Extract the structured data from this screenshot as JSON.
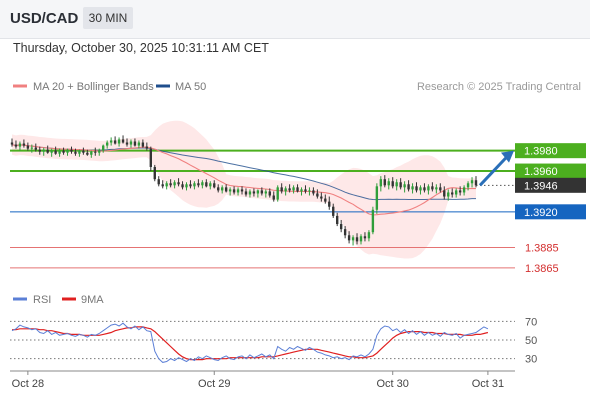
{
  "header": {
    "symbol": "USD/CAD",
    "timeframe": "30 MIN",
    "datetime": "Thursday, October 30, 2025 10:31:11 AM CET"
  },
  "credit": "Research © 2025 Trading Central",
  "colors": {
    "up_candle": "#2f9e3a",
    "down_candle": "#333333",
    "ma20": "#f08080",
    "bollinger_fill": "#fde0e0",
    "ma50": "#1f4e8c",
    "resistance": "#4caf1f",
    "pivot": "#1565c0",
    "support": "#e57373",
    "last_price_bg": "#333333",
    "rsi": "#5b7fd6",
    "rsi_ma": "#e02020",
    "arrow": "#2a6fb8"
  },
  "chart_data": [
    {
      "type": "candlestick",
      "title": "USD/CAD 30 MIN",
      "legend": [
        {
          "name": "MA 20 + Bollinger Bands",
          "color": "#f08080"
        },
        {
          "name": "MA 50",
          "color": "#1f4e8c"
        }
      ],
      "ylim": [
        1.3858,
        1.4015
      ],
      "levels": [
        {
          "value": 1.398,
          "label": "1.3980",
          "kind": "resistance"
        },
        {
          "value": 1.396,
          "label": "1.3960",
          "kind": "resistance"
        },
        {
          "value": 1.3946,
          "label": "1.3946",
          "kind": "last"
        },
        {
          "value": 1.392,
          "label": "1.3920",
          "kind": "pivot"
        },
        {
          "value": 1.3885,
          "label": "1.3885",
          "kind": "support"
        },
        {
          "value": 1.3865,
          "label": "1.3865",
          "kind": "support"
        }
      ],
      "last_price": 1.3946,
      "forecast_target": 1.398,
      "x_ticks": [
        {
          "label": "Oct 28",
          "index": 4
        },
        {
          "label": "Oct 29",
          "index": 51
        },
        {
          "label": "Oct 30",
          "index": 96
        },
        {
          "label": "Oct 31",
          "index": 120
        }
      ],
      "ohlc": [
        [
          1.3988,
          1.3992,
          1.3984,
          1.3986
        ],
        [
          1.3986,
          1.399,
          1.3982,
          1.3984
        ],
        [
          1.3984,
          1.3989,
          1.398,
          1.3987
        ],
        [
          1.3987,
          1.3991,
          1.3983,
          1.3985
        ],
        [
          1.3985,
          1.3988,
          1.398,
          1.3982
        ],
        [
          1.3982,
          1.3986,
          1.3978,
          1.3983
        ],
        [
          1.3983,
          1.3987,
          1.3979,
          1.3981
        ],
        [
          1.3981,
          1.3984,
          1.3976,
          1.3979
        ],
        [
          1.3979,
          1.3983,
          1.3975,
          1.3981
        ],
        [
          1.3981,
          1.3985,
          1.3977,
          1.3978
        ],
        [
          1.3978,
          1.3982,
          1.3974,
          1.398
        ],
        [
          1.398,
          1.3984,
          1.3976,
          1.3977
        ],
        [
          1.3977,
          1.3982,
          1.3974,
          1.398
        ],
        [
          1.398,
          1.3983,
          1.3976,
          1.3978
        ],
        [
          1.3978,
          1.3982,
          1.3975,
          1.3981
        ],
        [
          1.3981,
          1.3984,
          1.3977,
          1.3979
        ],
        [
          1.3979,
          1.3982,
          1.3975,
          1.3977
        ],
        [
          1.3977,
          1.3981,
          1.3974,
          1.398
        ],
        [
          1.398,
          1.3983,
          1.3976,
          1.3978
        ],
        [
          1.3978,
          1.3981,
          1.3975,
          1.3976
        ],
        [
          1.3976,
          1.398,
          1.3973,
          1.3979
        ],
        [
          1.3979,
          1.3983,
          1.3975,
          1.3978
        ],
        [
          1.3978,
          1.3982,
          1.3975,
          1.398
        ],
        [
          1.398,
          1.3986,
          1.3978,
          1.3985
        ],
        [
          1.3985,
          1.399,
          1.3982,
          1.3988
        ],
        [
          1.3988,
          1.3993,
          1.3985,
          1.399
        ],
        [
          1.399,
          1.3994,
          1.3986,
          1.3987
        ],
        [
          1.3987,
          1.3993,
          1.3984,
          1.3991
        ],
        [
          1.3991,
          1.3995,
          1.3987,
          1.3988
        ],
        [
          1.3988,
          1.3992,
          1.3984,
          1.3986
        ],
        [
          1.3986,
          1.3991,
          1.3983,
          1.3989
        ],
        [
          1.3989,
          1.3992,
          1.3984,
          1.3985
        ],
        [
          1.3985,
          1.399,
          1.3982,
          1.3988
        ],
        [
          1.3988,
          1.3991,
          1.3983,
          1.3984
        ],
        [
          1.3984,
          1.3988,
          1.398,
          1.3982
        ],
        [
          1.3982,
          1.3984,
          1.396,
          1.3964
        ],
        [
          1.3964,
          1.3966,
          1.395,
          1.3952
        ],
        [
          1.3952,
          1.3955,
          1.3945,
          1.3947
        ],
        [
          1.3947,
          1.3951,
          1.3943,
          1.3945
        ],
        [
          1.3945,
          1.395,
          1.3942,
          1.3948
        ],
        [
          1.3948,
          1.3952,
          1.3944,
          1.3946
        ],
        [
          1.3946,
          1.3951,
          1.3943,
          1.3949
        ],
        [
          1.3949,
          1.3953,
          1.3945,
          1.3947
        ],
        [
          1.3947,
          1.395,
          1.3942,
          1.3944
        ],
        [
          1.3944,
          1.3949,
          1.3941,
          1.3947
        ],
        [
          1.3947,
          1.3951,
          1.3943,
          1.3945
        ],
        [
          1.3945,
          1.395,
          1.3942,
          1.3948
        ],
        [
          1.3948,
          1.3952,
          1.3944,
          1.3946
        ],
        [
          1.3946,
          1.3951,
          1.3943,
          1.3949
        ],
        [
          1.3949,
          1.3952,
          1.3944,
          1.3945
        ],
        [
          1.3945,
          1.395,
          1.3942,
          1.3948
        ],
        [
          1.3948,
          1.3951,
          1.3943,
          1.3944
        ],
        [
          1.3944,
          1.3947,
          1.3939,
          1.3941
        ],
        [
          1.3941,
          1.3946,
          1.3938,
          1.3944
        ],
        [
          1.3944,
          1.3947,
          1.3939,
          1.394
        ],
        [
          1.394,
          1.3944,
          1.3936,
          1.3942
        ],
        [
          1.3942,
          1.3945,
          1.3937,
          1.3939
        ],
        [
          1.3939,
          1.3944,
          1.3936,
          1.3942
        ],
        [
          1.3942,
          1.3945,
          1.3937,
          1.394
        ],
        [
          1.394,
          1.3943,
          1.3935,
          1.3937
        ],
        [
          1.3937,
          1.3942,
          1.3934,
          1.394
        ],
        [
          1.394,
          1.3943,
          1.3935,
          1.3938
        ],
        [
          1.3938,
          1.3942,
          1.3934,
          1.3941
        ],
        [
          1.3941,
          1.3944,
          1.3936,
          1.3938
        ],
        [
          1.3938,
          1.3942,
          1.3934,
          1.394
        ],
        [
          1.394,
          1.3943,
          1.3934,
          1.3936
        ],
        [
          1.3936,
          1.394,
          1.393,
          1.3932
        ],
        [
          1.3932,
          1.3946,
          1.393,
          1.3944
        ],
        [
          1.3944,
          1.3948,
          1.3938,
          1.394
        ],
        [
          1.394,
          1.3945,
          1.3936,
          1.3943
        ],
        [
          1.3943,
          1.3947,
          1.3939,
          1.3941
        ],
        [
          1.3941,
          1.3946,
          1.3938,
          1.3944
        ],
        [
          1.3944,
          1.3947,
          1.3939,
          1.394
        ],
        [
          1.394,
          1.3944,
          1.3936,
          1.3942
        ],
        [
          1.3942,
          1.3946,
          1.3938,
          1.394
        ],
        [
          1.394,
          1.3944,
          1.3936,
          1.3941
        ],
        [
          1.3941,
          1.3944,
          1.3936,
          1.3938
        ],
        [
          1.3938,
          1.3942,
          1.3933,
          1.3935
        ],
        [
          1.3935,
          1.3939,
          1.393,
          1.3933
        ],
        [
          1.3933,
          1.3937,
          1.3928,
          1.393
        ],
        [
          1.393,
          1.3935,
          1.3922,
          1.3925
        ],
        [
          1.3925,
          1.3928,
          1.3914,
          1.3916
        ],
        [
          1.3916,
          1.3919,
          1.3906,
          1.3908
        ],
        [
          1.3908,
          1.3912,
          1.39,
          1.3903
        ],
        [
          1.3903,
          1.3906,
          1.3894,
          1.3897
        ],
        [
          1.3897,
          1.3901,
          1.3889,
          1.3892
        ],
        [
          1.3892,
          1.3897,
          1.3887,
          1.3895
        ],
        [
          1.3895,
          1.3899,
          1.3888,
          1.3891
        ],
        [
          1.3891,
          1.3898,
          1.3888,
          1.3896
        ],
        [
          1.3896,
          1.39,
          1.3891,
          1.3894
        ],
        [
          1.3894,
          1.3902,
          1.3891,
          1.39
        ],
        [
          1.39,
          1.3925,
          1.3898,
          1.3922
        ],
        [
          1.3922,
          1.3948,
          1.3918,
          1.3945
        ],
        [
          1.3945,
          1.3955,
          1.394,
          1.3952
        ],
        [
          1.3952,
          1.3956,
          1.3944,
          1.3946
        ],
        [
          1.3946,
          1.3953,
          1.3942,
          1.395
        ],
        [
          1.395,
          1.3954,
          1.3943,
          1.3945
        ],
        [
          1.3945,
          1.3952,
          1.3941,
          1.3949
        ],
        [
          1.3949,
          1.3953,
          1.3942,
          1.3944
        ],
        [
          1.3944,
          1.395,
          1.3939,
          1.3947
        ],
        [
          1.3947,
          1.3951,
          1.394,
          1.3942
        ],
        [
          1.3942,
          1.3948,
          1.3938,
          1.3945
        ],
        [
          1.3945,
          1.3949,
          1.3939,
          1.3941
        ],
        [
          1.3941,
          1.3946,
          1.3937,
          1.3944
        ],
        [
          1.3944,
          1.3948,
          1.3939,
          1.3941
        ],
        [
          1.3941,
          1.3947,
          1.3937,
          1.3945
        ],
        [
          1.3945,
          1.3949,
          1.394,
          1.3942
        ],
        [
          1.3942,
          1.3947,
          1.3938,
          1.3944
        ],
        [
          1.3944,
          1.3948,
          1.3939,
          1.3941
        ],
        [
          1.3941,
          1.3945,
          1.3932,
          1.3935
        ],
        [
          1.3935,
          1.3942,
          1.3931,
          1.3939
        ],
        [
          1.3939,
          1.3943,
          1.3934,
          1.3937
        ],
        [
          1.3937,
          1.3943,
          1.3934,
          1.3941
        ],
        [
          1.3941,
          1.3945,
          1.3936,
          1.3939
        ],
        [
          1.3939,
          1.3946,
          1.3936,
          1.3944
        ],
        [
          1.3944,
          1.395,
          1.3941,
          1.3948
        ],
        [
          1.3948,
          1.3954,
          1.3944,
          1.3951
        ],
        [
          1.3951,
          1.3955,
          1.3944,
          1.3946
        ]
      ]
    },
    {
      "type": "line",
      "title": "RSI",
      "legend": [
        {
          "name": "RSI",
          "color": "#5b7fd6"
        },
        {
          "name": "9MA",
          "color": "#e02020"
        }
      ],
      "ylim": [
        20,
        80
      ],
      "y_ticks": [
        70,
        50,
        30
      ],
      "series": [
        {
          "name": "RSI",
          "values": [
            60,
            62,
            66,
            64,
            63,
            61,
            62,
            58,
            57,
            60,
            56,
            58,
            55,
            56,
            57,
            55,
            54,
            56,
            55,
            53,
            56,
            55,
            57,
            60,
            63,
            66,
            67,
            65,
            68,
            64,
            62,
            65,
            61,
            64,
            60,
            59,
            38,
            30,
            26,
            27,
            30,
            28,
            31,
            29,
            27,
            30,
            28,
            32,
            30,
            33,
            31,
            29,
            28,
            31,
            33,
            30,
            29,
            32,
            33,
            30,
            34,
            31,
            33,
            35,
            32,
            34,
            30,
            43,
            40,
            38,
            42,
            40,
            43,
            41,
            39,
            42,
            40,
            37,
            36,
            34,
            33,
            31,
            32,
            30,
            31,
            29,
            33,
            32,
            34,
            32,
            35,
            40,
            55,
            62,
            65,
            64,
            60,
            62,
            58,
            61,
            57,
            60,
            56,
            59,
            55,
            58,
            55,
            57,
            54,
            58,
            56,
            55,
            57,
            52,
            55,
            56,
            57,
            58,
            61,
            64,
            62
          ]
        },
        {
          "name": "9MA",
          "values": [
            61,
            61,
            62,
            62,
            62,
            62,
            62,
            61,
            61,
            60,
            60,
            59,
            58,
            57,
            57,
            56,
            56,
            56,
            55,
            55,
            55,
            55,
            55,
            56,
            57,
            58,
            60,
            61,
            62,
            63,
            63,
            64,
            64,
            64,
            63,
            62,
            59,
            55,
            51,
            47,
            43,
            39,
            35,
            32,
            30,
            29,
            29,
            29,
            29,
            30,
            30,
            30,
            30,
            30,
            30,
            31,
            31,
            31,
            31,
            31,
            31,
            31,
            31,
            32,
            32,
            32,
            32,
            33,
            34,
            35,
            36,
            37,
            38,
            39,
            40,
            40,
            40,
            40,
            39,
            38,
            37,
            36,
            35,
            34,
            33,
            32,
            32,
            31,
            31,
            31,
            32,
            33,
            36,
            40,
            44,
            48,
            52,
            55,
            57,
            58,
            59,
            59,
            59,
            59,
            58,
            58,
            58,
            57,
            57,
            57,
            56,
            56,
            56,
            56,
            55,
            55,
            55,
            56,
            56,
            57,
            58
          ]
        }
      ]
    }
  ]
}
